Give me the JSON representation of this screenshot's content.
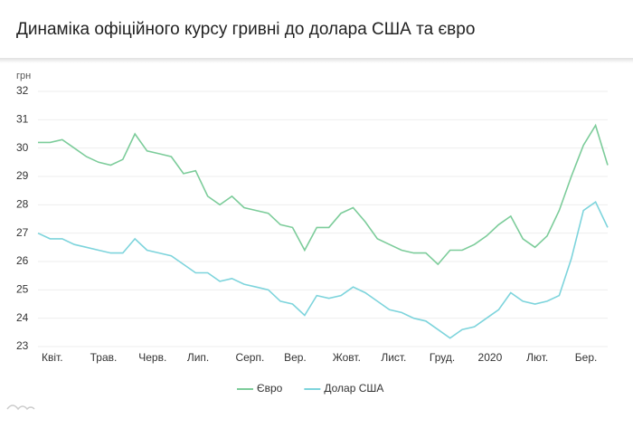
{
  "chart_data": {
    "type": "line",
    "title": "Динаміка офіційного курсу гривні до долара США та євро",
    "y_label": "грн",
    "categories": [
      "Квіт.",
      null,
      null,
      null,
      "Трав.",
      null,
      null,
      null,
      "Черв.",
      null,
      null,
      null,
      "Лип.",
      null,
      null,
      null,
      "Серп.",
      null,
      null,
      null,
      "Вер.",
      null,
      null,
      null,
      "Жовт.",
      null,
      null,
      null,
      "Лист.",
      null,
      null,
      null,
      "Груд.",
      null,
      null,
      null,
      "2020",
      null,
      null,
      null,
      "Лют.",
      null,
      null,
      null,
      "Бер.",
      null,
      null,
      null
    ],
    "series": [
      {
        "name": "Євро",
        "color": "#7ccc9a",
        "values": [
          30.2,
          30.2,
          30.3,
          30.0,
          29.7,
          29.5,
          29.4,
          29.6,
          30.5,
          29.9,
          29.8,
          29.7,
          29.1,
          29.2,
          28.3,
          28.0,
          28.3,
          27.9,
          27.8,
          27.7,
          27.3,
          27.2,
          26.4,
          27.2,
          27.2,
          27.7,
          27.9,
          27.4,
          26.8,
          26.6,
          26.4,
          26.3,
          26.3,
          25.9,
          26.4,
          26.4,
          26.6,
          26.9,
          27.3,
          27.6,
          26.8,
          26.5,
          26.9,
          27.8,
          29.0,
          30.1,
          30.8,
          29.4
        ]
      },
      {
        "name": "Долар США",
        "color": "#7dd4dc",
        "values": [
          27.0,
          26.8,
          26.8,
          26.6,
          26.5,
          26.4,
          26.3,
          26.3,
          26.8,
          26.4,
          26.3,
          26.2,
          25.9,
          25.6,
          25.6,
          25.3,
          25.4,
          25.2,
          25.1,
          25.0,
          24.6,
          24.5,
          24.1,
          24.8,
          24.7,
          24.8,
          25.1,
          24.9,
          24.6,
          24.3,
          24.2,
          24.0,
          23.9,
          23.6,
          23.3,
          23.6,
          23.7,
          24.0,
          24.3,
          24.9,
          24.6,
          24.5,
          24.6,
          24.8,
          26.1,
          27.8,
          28.1,
          27.2
        ]
      }
    ],
    "ylim": [
      23,
      32
    ],
    "yticks": [
      23,
      24,
      25,
      26,
      27,
      28,
      29,
      30,
      31,
      32
    ],
    "grid": true
  }
}
